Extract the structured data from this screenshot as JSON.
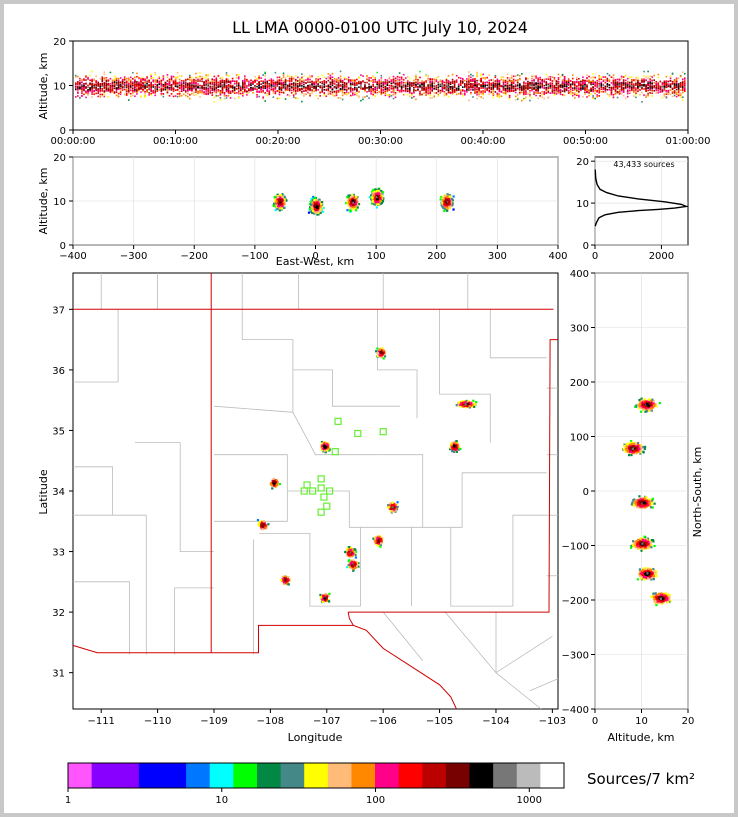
{
  "title": "LL LMA 0000-0100 UTC July 10, 2024",
  "colors": {
    "frame_bg": "#c8c8c8",
    "border_red": "#d00000",
    "county_gray": "#bbbbbb",
    "station_green": "#66ee33",
    "axis": "#000000",
    "grid": "#dddddd"
  },
  "chart_data": [
    {
      "name": "time-height",
      "type": "heatmap",
      "xlabel": "",
      "ylabel": "Altitude, km",
      "ylim": [
        0,
        20
      ],
      "yticks": [
        "0",
        "10",
        "20"
      ],
      "xticks": [
        "00:00:00",
        "00:10:00",
        "00:20:00",
        "00:30:00",
        "00:40:00",
        "00:50:00",
        "01:00:00"
      ],
      "xlim_minutes": [
        0,
        60
      ],
      "activity_altitude_km": [
        4,
        17
      ]
    },
    {
      "name": "east-west-altitude",
      "type": "heatmap",
      "xlabel": "East-West, km",
      "ylabel": "Altitude, km",
      "xlim": [
        -400,
        400
      ],
      "ylim": [
        0,
        20
      ],
      "xticks": [
        "−400",
        "−300",
        "−200",
        "−100",
        "0",
        "100",
        "200",
        "300",
        "400"
      ],
      "yticks": [
        "0",
        "10",
        "20"
      ],
      "clusters_ew_km": [
        {
          "x": -60,
          "z": 10
        },
        {
          "x": 0,
          "z": 9
        },
        {
          "x": 60,
          "z": 10
        },
        {
          "x": 100,
          "z": 11
        },
        {
          "x": 215,
          "z": 10
        }
      ]
    },
    {
      "name": "altitude-histogram",
      "type": "line",
      "annotation": "43,433 sources",
      "xlim": [
        0,
        2800
      ],
      "ylim": [
        0,
        21
      ],
      "xticks": [
        "0",
        "2000"
      ],
      "yticks": [
        "0",
        "10",
        "20"
      ],
      "x": [
        5,
        50,
        120,
        300,
        700,
        1300,
        1900,
        2400,
        2750,
        2600,
        2100,
        1300,
        700,
        350,
        150,
        60,
        20,
        5
      ],
      "y": [
        4.5,
        5.5,
        6.5,
        7.2,
        7.8,
        8.2,
        8.5,
        8.8,
        9.2,
        9.7,
        10.3,
        11.0,
        11.7,
        12.5,
        13.3,
        14.5,
        16.0,
        18.0
      ]
    },
    {
      "name": "plan-view",
      "type": "heatmap",
      "xlabel": "Longitude",
      "ylabel": "Latitude",
      "xlim": [
        -111.5,
        -102.9
      ],
      "ylim": [
        30.4,
        37.6
      ],
      "xticks": [
        "−111",
        "−110",
        "−109",
        "−108",
        "−107",
        "−106",
        "−105",
        "−104",
        "−103"
      ],
      "yticks": [
        "31",
        "32",
        "33",
        "34",
        "35",
        "36",
        "37"
      ],
      "clusters": [
        {
          "lon": -104.55,
          "lat": 35.45
        },
        {
          "lon": -104.75,
          "lat": 34.75
        },
        {
          "lon": -107.05,
          "lat": 34.75
        },
        {
          "lon": -105.85,
          "lat": 33.75
        },
        {
          "lon": -106.1,
          "lat": 33.2
        },
        {
          "lon": -106.6,
          "lat": 33.0
        },
        {
          "lon": -106.55,
          "lat": 32.8
        },
        {
          "lon": -107.05,
          "lat": 32.25
        },
        {
          "lon": -107.75,
          "lat": 32.55
        },
        {
          "lon": -108.15,
          "lat": 33.45
        },
        {
          "lon": -107.95,
          "lat": 34.15
        },
        {
          "lon": -106.05,
          "lat": 36.3
        }
      ],
      "stations": [
        [
          -106.8,
          35.15
        ],
        [
          -106.45,
          34.95
        ],
        [
          -106.0,
          34.98
        ],
        [
          -106.85,
          34.65
        ],
        [
          -107.1,
          34.2
        ],
        [
          -107.1,
          34.05
        ],
        [
          -107.35,
          34.1
        ],
        [
          -107.4,
          34.0
        ],
        [
          -107.25,
          34.0
        ],
        [
          -106.95,
          34.0
        ],
        [
          -107.05,
          33.9
        ],
        [
          -107.0,
          33.75
        ],
        [
          -107.1,
          33.65
        ]
      ]
    },
    {
      "name": "altitude-north-south",
      "type": "heatmap",
      "xlabel": "Altitude, km",
      "ylabel": "North-South, km",
      "xlim": [
        0,
        20
      ],
      "ylim": [
        -400,
        400
      ],
      "xticks": [
        "0",
        "10",
        "20"
      ],
      "yticks": [
        "400",
        "300",
        "200",
        "100",
        "0",
        "−100",
        "−200",
        "−300",
        "−400"
      ],
      "clusters_ns_km": [
        {
          "z": 11,
          "y": 160
        },
        {
          "z": 8,
          "y": 80
        },
        {
          "z": 10,
          "y": -20
        },
        {
          "z": 10,
          "y": -95
        },
        {
          "z": 11,
          "y": -150
        },
        {
          "z": 14,
          "y": -195
        }
      ]
    }
  ],
  "colorbar": {
    "label": "Sources/7 km²",
    "ticks": [
      "1",
      "10",
      "100",
      "1000"
    ],
    "colors": [
      "#ff55ff",
      "#8800ff",
      "#8800ff",
      "#0000ff",
      "#0000ff",
      "#0077ff",
      "#00ffff",
      "#00ff00",
      "#008844",
      "#448888",
      "#ffff00",
      "#ffbb77",
      "#ff8800",
      "#ff0088",
      "#ff0000",
      "#bb0000",
      "#770000",
      "#000000",
      "#777777",
      "#bbbbbb",
      "#ffffff"
    ]
  }
}
